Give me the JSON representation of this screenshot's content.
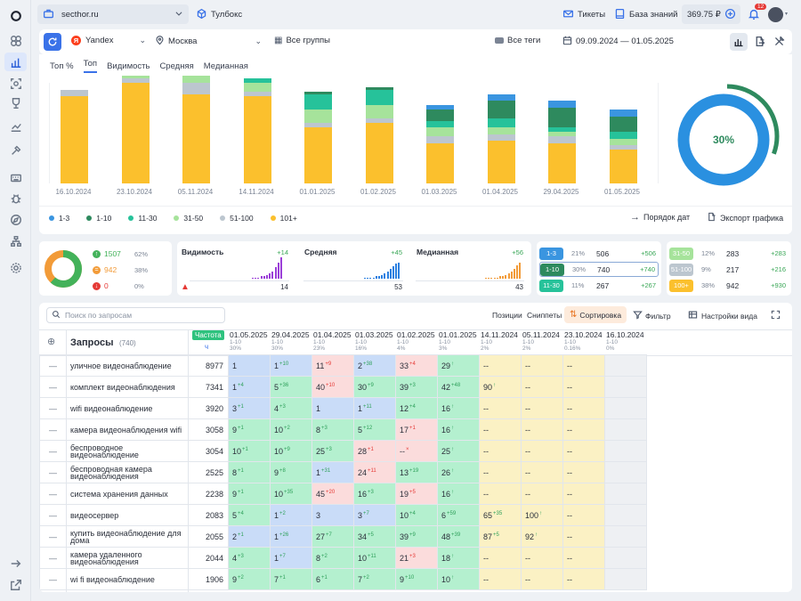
{
  "topbar": {
    "site": "secthor.ru",
    "toolbox": "Тулбокс",
    "tickets": "Тикеты",
    "kb": "База знаний",
    "balance": "369.75 ₽",
    "notif_count": "12"
  },
  "filters": {
    "engine": "Yandex",
    "region": "Москва",
    "groups": "Все группы",
    "tags": "Все теги",
    "daterange": "09.09.2024 — 01.05.2025"
  },
  "tabs": [
    "Топ %",
    "Топ",
    "Видимость",
    "Средняя",
    "Медианная"
  ],
  "chart_data": {
    "type": "bar",
    "stacked": true,
    "categories": [
      "16.10.2024",
      "23.10.2024",
      "05.11.2024",
      "14.11.2024",
      "01.01.2025",
      "01.02.2025",
      "01.03.2025",
      "01.04.2025",
      "29.04.2025",
      "01.05.2025"
    ],
    "series": [
      {
        "name": "1-3",
        "color": "#3a95e0",
        "values": [
          0,
          0,
          0,
          0,
          0,
          0,
          2,
          3,
          3,
          3
        ]
      },
      {
        "name": "1-10",
        "color": "#2e8a5e",
        "values": [
          0,
          0,
          0,
          0,
          1,
          1,
          5,
          8,
          9,
          7
        ]
      },
      {
        "name": "11-30",
        "color": "#26c29a",
        "values": [
          0,
          0,
          0,
          2,
          7,
          7,
          3,
          4,
          2,
          3
        ]
      },
      {
        "name": "31-50",
        "color": "#a6e39b",
        "values": [
          0,
          1,
          3,
          4,
          6,
          6,
          4,
          3,
          2,
          3
        ]
      },
      {
        "name": "51-100",
        "color": "#bcc6cf",
        "values": [
          3,
          2,
          5,
          2,
          2,
          2,
          3,
          3,
          3,
          2
        ]
      },
      {
        "name": "101+",
        "color": "#fbc02d",
        "values": [
          39,
          45,
          40,
          39,
          25,
          27,
          18,
          19,
          18,
          15
        ]
      }
    ],
    "donut_percent": 30,
    "donut_label": "30%"
  },
  "legend": [
    "1-3",
    "1-10",
    "11-30",
    "31-50",
    "51-100",
    "101+"
  ],
  "chart_actions": {
    "order": "Порядок дат",
    "export": "Экспорт графика"
  },
  "summary": {
    "up": "1507",
    "up_pct": "62%",
    "eq": "942",
    "eq_pct": "38%",
    "down": "0",
    "down_pct": "0%"
  },
  "metrics": [
    {
      "label": "Видимость",
      "delta": "+14",
      "value": "14"
    },
    {
      "label": "Средняя",
      "delta": "+45",
      "value": "53"
    },
    {
      "label": "Медианная",
      "delta": "+56",
      "value": "43"
    }
  ],
  "tiers_left": [
    {
      "name": "1-3",
      "pct": "21%",
      "val": "506",
      "delta": "+506",
      "color": "#3a95e0"
    },
    {
      "name": "1-10",
      "pct": "30%",
      "val": "740",
      "delta": "+740",
      "color": "#2e8a5e"
    },
    {
      "name": "11-30",
      "pct": "11%",
      "val": "267",
      "delta": "+267",
      "color": "#26c29a"
    }
  ],
  "tiers_right": [
    {
      "name": "31-50",
      "pct": "12%",
      "val": "283",
      "delta": "+283",
      "color": "#a6e39b"
    },
    {
      "name": "51-100",
      "pct": "9%",
      "val": "217",
      "delta": "+216",
      "color": "#bcc6cf"
    },
    {
      "name": "100+",
      "pct": "38%",
      "val": "942",
      "delta": "+930",
      "color": "#fbc02d"
    }
  ],
  "table_toolbar": {
    "search_placeholder": "Поиск по запросам",
    "positions": "Позиции",
    "snippets": "Сниппеты",
    "sort": "Сортировка",
    "filter": "Фильтр",
    "view": "Настройки вида"
  },
  "table_header": {
    "queries": "Запросы",
    "count": "(740)",
    "freq": "Частота",
    "freq_sub": "ч"
  },
  "dates": [
    {
      "d": "01.05.2025",
      "s1": "1-10",
      "s2": "30%"
    },
    {
      "d": "29.04.2025",
      "s1": "1-10",
      "s2": "30%"
    },
    {
      "d": "01.04.2025",
      "s1": "1-10",
      "s2": "23%"
    },
    {
      "d": "01.03.2025",
      "s1": "1-10",
      "s2": "16%"
    },
    {
      "d": "01.02.2025",
      "s1": "1-10",
      "s2": "4%"
    },
    {
      "d": "01.01.2025",
      "s1": "1-10",
      "s2": "3%"
    },
    {
      "d": "14.11.2024",
      "s1": "1-10",
      "s2": "2%"
    },
    {
      "d": "05.11.2024",
      "s1": "1-10",
      "s2": "2%"
    },
    {
      "d": "23.10.2024",
      "s1": "1-10",
      "s2": "0.16%"
    },
    {
      "d": "16.10.2024",
      "s1": "1-10",
      "s2": "0%"
    }
  ],
  "rows": [
    {
      "q": "уличное видеонаблюдение",
      "f": "8977",
      "c": [
        [
          "1",
          "",
          "b"
        ],
        [
          "1",
          "+10",
          "b"
        ],
        [
          "11",
          "+9",
          "r"
        ],
        [
          "2",
          "+38",
          "b"
        ],
        [
          "33",
          "+4",
          "r"
        ],
        [
          "29",
          "↑",
          "g"
        ],
        [
          "--",
          "",
          "y"
        ],
        [
          "--",
          "",
          "y"
        ],
        [
          "--",
          "",
          "y"
        ],
        [
          "",
          "",
          "gr"
        ]
      ]
    },
    {
      "q": "комплект видеонаблюдения",
      "f": "7341",
      "c": [
        [
          "1",
          "+4",
          "b"
        ],
        [
          "5",
          "+36",
          "g"
        ],
        [
          "40",
          "+10",
          "r"
        ],
        [
          "30",
          "+9",
          "g"
        ],
        [
          "39",
          "+3",
          "g"
        ],
        [
          "42",
          "+48",
          "g"
        ],
        [
          "90",
          "↑",
          "y"
        ],
        [
          "--",
          "",
          "y"
        ],
        [
          "--",
          "",
          "y"
        ],
        [
          "",
          "",
          "gr"
        ]
      ]
    },
    {
      "q": "wifi видеонаблюдение",
      "f": "3920",
      "c": [
        [
          "3",
          "+1",
          "b"
        ],
        [
          "4",
          "+3",
          "g"
        ],
        [
          "1",
          "",
          "b"
        ],
        [
          "1",
          "+11",
          "b"
        ],
        [
          "12",
          "+4",
          "g"
        ],
        [
          "16",
          "↑",
          "g"
        ],
        [
          "--",
          "",
          "y"
        ],
        [
          "--",
          "",
          "y"
        ],
        [
          "--",
          "",
          "y"
        ],
        [
          "",
          "",
          "gr"
        ]
      ]
    },
    {
      "q": "камера видеонаблюдения wifi",
      "f": "3058",
      "c": [
        [
          "9",
          "+1",
          "g"
        ],
        [
          "10",
          "+2",
          "g"
        ],
        [
          "8",
          "+3",
          "g"
        ],
        [
          "5",
          "+12",
          "g"
        ],
        [
          "17",
          "+1",
          "r"
        ],
        [
          "16",
          "↑",
          "g"
        ],
        [
          "--",
          "",
          "y"
        ],
        [
          "--",
          "",
          "y"
        ],
        [
          "--",
          "",
          "y"
        ],
        [
          "",
          "",
          "gr"
        ]
      ]
    },
    {
      "q": "беспроводное видеонаблюдение",
      "f": "3054",
      "c": [
        [
          "10",
          "+1",
          "g"
        ],
        [
          "10",
          "+9",
          "g"
        ],
        [
          "25",
          "+3",
          "g"
        ],
        [
          "28",
          "+1",
          "r"
        ],
        [
          "--",
          "×",
          "r"
        ],
        [
          "25",
          "↑",
          "g"
        ],
        [
          "--",
          "",
          "y"
        ],
        [
          "--",
          "",
          "y"
        ],
        [
          "--",
          "",
          "y"
        ],
        [
          "",
          "",
          "gr"
        ]
      ]
    },
    {
      "q": "беспроводная камера видеонаблюдения",
      "f": "2525",
      "c": [
        [
          "8",
          "+1",
          "g"
        ],
        [
          "9",
          "+8",
          "g"
        ],
        [
          "1",
          "+31",
          "b"
        ],
        [
          "24",
          "+11",
          "r"
        ],
        [
          "13",
          "+19",
          "g"
        ],
        [
          "26",
          "↑",
          "g"
        ],
        [
          "--",
          "",
          "y"
        ],
        [
          "--",
          "",
          "y"
        ],
        [
          "--",
          "",
          "y"
        ],
        [
          "",
          "",
          "gr"
        ]
      ]
    },
    {
      "q": "система хранения данных",
      "f": "2238",
      "c": [
        [
          "9",
          "+1",
          "g"
        ],
        [
          "10",
          "+35",
          "g"
        ],
        [
          "45",
          "+20",
          "r"
        ],
        [
          "16",
          "+3",
          "g"
        ],
        [
          "19",
          "+5",
          "r"
        ],
        [
          "16",
          "↑",
          "g"
        ],
        [
          "--",
          "",
          "y"
        ],
        [
          "--",
          "",
          "y"
        ],
        [
          "--",
          "",
          "y"
        ],
        [
          "",
          "",
          "gr"
        ]
      ]
    },
    {
      "q": "видеосервер",
      "f": "2083",
      "c": [
        [
          "5",
          "+4",
          "g"
        ],
        [
          "1",
          "+2",
          "b"
        ],
        [
          "3",
          "",
          "b"
        ],
        [
          "3",
          "+7",
          "b"
        ],
        [
          "10",
          "+4",
          "g"
        ],
        [
          "6",
          "+59",
          "g"
        ],
        [
          "65",
          "+35",
          "y"
        ],
        [
          "100",
          "↑",
          "y"
        ],
        [
          "--",
          "",
          "y"
        ],
        [
          "",
          "",
          "gr"
        ]
      ]
    },
    {
      "q": "купить видеонаблюдение для дома",
      "f": "2055",
      "c": [
        [
          "2",
          "+1",
          "b"
        ],
        [
          "1",
          "+26",
          "b"
        ],
        [
          "27",
          "+7",
          "g"
        ],
        [
          "34",
          "+5",
          "g"
        ],
        [
          "39",
          "+9",
          "g"
        ],
        [
          "48",
          "+39",
          "g"
        ],
        [
          "87",
          "+5",
          "y"
        ],
        [
          "92",
          "↑",
          "y"
        ],
        [
          "--",
          "",
          "y"
        ],
        [
          "",
          "",
          "gr"
        ]
      ]
    },
    {
      "q": "камера удаленного видеонаблюдения",
      "f": "2044",
      "c": [
        [
          "4",
          "+3",
          "g"
        ],
        [
          "1",
          "+7",
          "b"
        ],
        [
          "8",
          "+2",
          "g"
        ],
        [
          "10",
          "+11",
          "g"
        ],
        [
          "21",
          "+3",
          "r"
        ],
        [
          "18",
          "↑",
          "g"
        ],
        [
          "--",
          "",
          "y"
        ],
        [
          "--",
          "",
          "y"
        ],
        [
          "--",
          "",
          "y"
        ],
        [
          "",
          "",
          "gr"
        ]
      ]
    },
    {
      "q": "wi fi видеонаблюдение",
      "f": "1906",
      "c": [
        [
          "9",
          "+2",
          "g"
        ],
        [
          "7",
          "+1",
          "g"
        ],
        [
          "6",
          "+1",
          "g"
        ],
        [
          "7",
          "+2",
          "g"
        ],
        [
          "9",
          "+10",
          "g"
        ],
        [
          "10",
          "↑",
          "g"
        ],
        [
          "--",
          "",
          "y"
        ],
        [
          "--",
          "",
          "y"
        ],
        [
          "--",
          "",
          "y"
        ],
        [
          "",
          "",
          "gr"
        ]
      ]
    }
  ]
}
